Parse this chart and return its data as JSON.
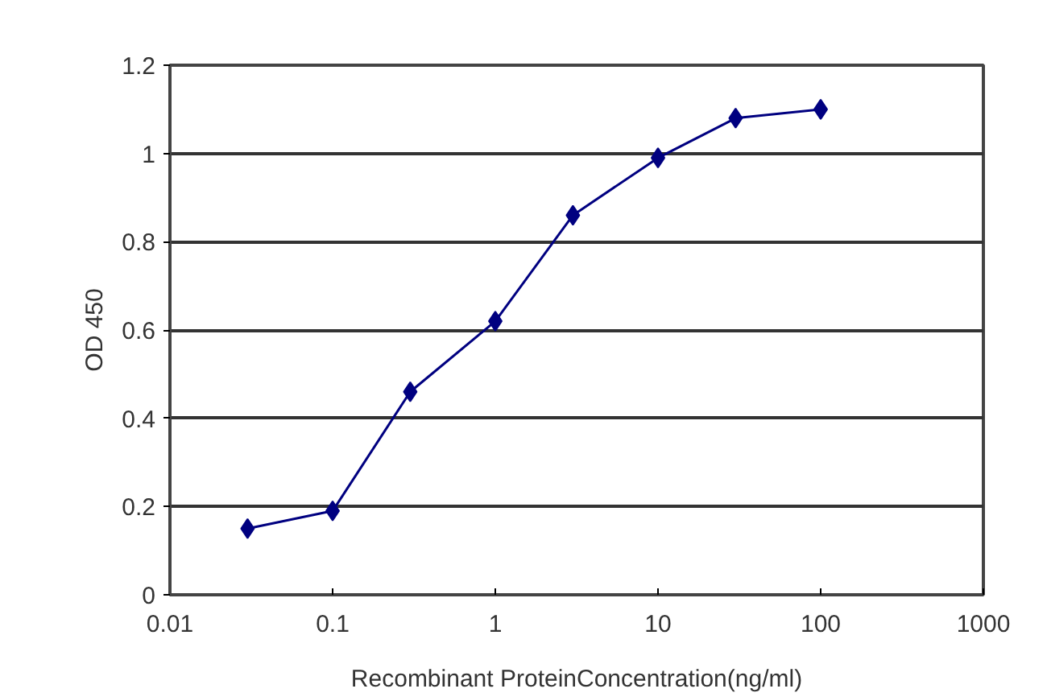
{
  "chart_data": {
    "type": "line",
    "xlabel": "Recombinant ProteinConcentration(ng/ml)",
    "ylabel": "OD 450",
    "x": [
      0.03,
      0.1,
      0.3,
      1,
      3,
      10,
      30,
      100
    ],
    "series": [
      {
        "color": "#000080",
        "values": [
          0.15,
          0.19,
          0.46,
          0.62,
          0.86,
          0.99,
          1.08,
          1.1
        ]
      }
    ],
    "xlim": [
      0.01,
      1000
    ],
    "xticks": [
      0.01,
      0.1,
      1,
      10,
      100,
      1000
    ],
    "ylim": [
      0,
      1.2
    ],
    "yticks": [
      0,
      0.2,
      0.4,
      0.6,
      0.8,
      1,
      1.2
    ],
    "log": "x",
    "grid": "y",
    "marker": "diamond",
    "line_style": "solid"
  }
}
